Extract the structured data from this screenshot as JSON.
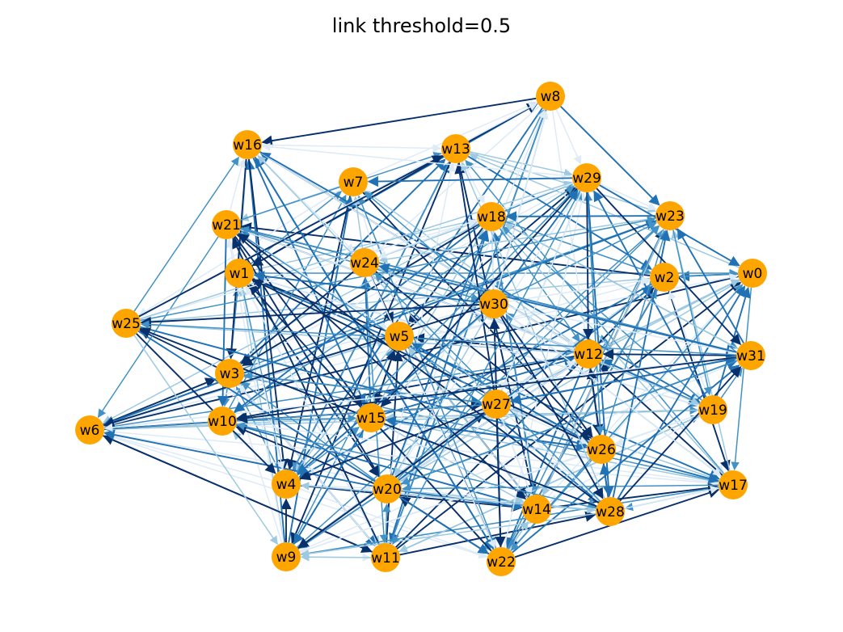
{
  "title": "link threshold=0.5",
  "colors": {
    "node_fill": "#ffa500",
    "edge_scale": [
      "#deebf7",
      "#9ecae1",
      "#4292c6",
      "#2171b5",
      "#08306b"
    ],
    "background": "#ffffff"
  },
  "nodes": [
    {
      "id": "w0",
      "label": "w0"
    },
    {
      "id": "w1",
      "label": "w1"
    },
    {
      "id": "w2",
      "label": "w2"
    },
    {
      "id": "w3",
      "label": "w3"
    },
    {
      "id": "w4",
      "label": "w4"
    },
    {
      "id": "w5",
      "label": "w5"
    },
    {
      "id": "w6",
      "label": "w6"
    },
    {
      "id": "w7",
      "label": "w7"
    },
    {
      "id": "w8",
      "label": "w8"
    },
    {
      "id": "w9",
      "label": "w9"
    },
    {
      "id": "w10",
      "label": "w10"
    },
    {
      "id": "w11",
      "label": "w11"
    },
    {
      "id": "w12",
      "label": "w12"
    },
    {
      "id": "w13",
      "label": "w13"
    },
    {
      "id": "w14",
      "label": "w14"
    },
    {
      "id": "w15",
      "label": "w15"
    },
    {
      "id": "w16",
      "label": "w16"
    },
    {
      "id": "w17",
      "label": "w17"
    },
    {
      "id": "w18",
      "label": "w18"
    },
    {
      "id": "w19",
      "label": "w19"
    },
    {
      "id": "w20",
      "label": "w20"
    },
    {
      "id": "w21",
      "label": "w21"
    },
    {
      "id": "w22",
      "label": "w22"
    },
    {
      "id": "w23",
      "label": "w23"
    },
    {
      "id": "w24",
      "label": "w24"
    },
    {
      "id": "w25",
      "label": "w25"
    },
    {
      "id": "w26",
      "label": "w26"
    },
    {
      "id": "w27",
      "label": "w27"
    },
    {
      "id": "w28",
      "label": "w28"
    },
    {
      "id": "w29",
      "label": "w29"
    },
    {
      "id": "w30",
      "label": "w30"
    },
    {
      "id": "w31",
      "label": "w31"
    }
  ]
}
